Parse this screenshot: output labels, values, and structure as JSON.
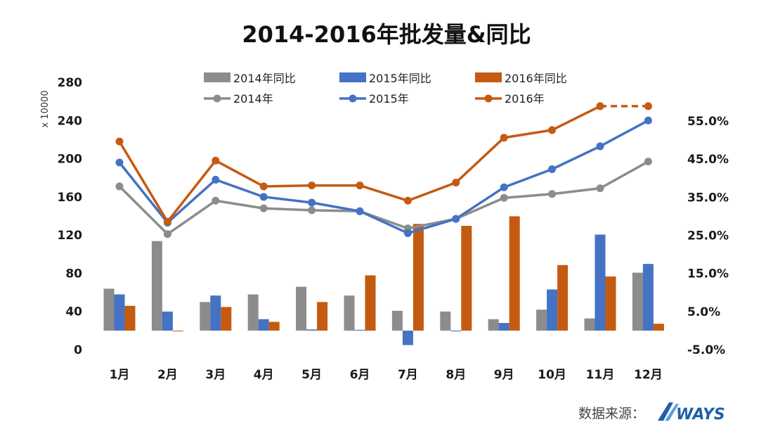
{
  "chart_data": {
    "type": "bar+line",
    "title": "2014-2016年批发量&同比",
    "ylabel_left": "x 10000",
    "categories": [
      "1月",
      "2月",
      "3月",
      "4月",
      "5月",
      "6月",
      "7月",
      "8月",
      "9月",
      "10月",
      "11月",
      "12月"
    ],
    "left_axis": {
      "min": 0,
      "max": 280,
      "ticks": [
        0,
        40,
        80,
        120,
        160,
        200,
        240,
        280
      ],
      "labels": [
        "0",
        "40",
        "80",
        "120",
        "160",
        "200",
        "240",
        "280"
      ]
    },
    "right_axis": {
      "min": -5,
      "max": 60,
      "ticks": [
        -5,
        5,
        15,
        25,
        35,
        45,
        55
      ],
      "labels": [
        "-5.0%",
        "5.0%",
        "15.0%",
        "25.0%",
        "35.0%",
        "45.0%",
        "55.0%"
      ]
    },
    "bar_series": [
      {
        "name": "2014年同比",
        "color": "#8c8c8c",
        "values": [
          11.0,
          23.5,
          7.5,
          9.5,
          11.5,
          9.2,
          5.2,
          5.0,
          3.0,
          5.5,
          3.2,
          15.2
        ]
      },
      {
        "name": "2015年同比",
        "color": "#4472c4",
        "values": [
          9.5,
          5.0,
          9.2,
          3.0,
          0.3,
          0.2,
          -3.8,
          -0.2,
          2.0,
          10.8,
          25.2,
          17.5
        ]
      },
      {
        "name": "2016年同比",
        "color": "#c55a11",
        "values": [
          6.5,
          -0.1,
          6.2,
          2.3,
          7.5,
          14.5,
          28.0,
          27.5,
          30.0,
          17.2,
          14.2,
          1.8
        ]
      }
    ],
    "line_series": [
      {
        "name": "2014年",
        "color": "#8c8c8c",
        "values": [
          171,
          121,
          156,
          148,
          146,
          145,
          127,
          137,
          159,
          163,
          169,
          197
        ]
      },
      {
        "name": "2015年",
        "color": "#4472c4",
        "values": [
          196,
          133,
          178,
          160,
          154,
          145,
          122,
          137,
          170,
          189,
          213,
          240
        ]
      },
      {
        "name": "2016年",
        "color": "#c55a11",
        "values": [
          218,
          134,
          198,
          171,
          172,
          172,
          156,
          175,
          222,
          230,
          255,
          255
        ],
        "dashed_last_segment": true
      }
    ]
  },
  "source": {
    "label": "数据来源：",
    "brand": "WAYS",
    "brand_color": "#1f5fa8"
  }
}
